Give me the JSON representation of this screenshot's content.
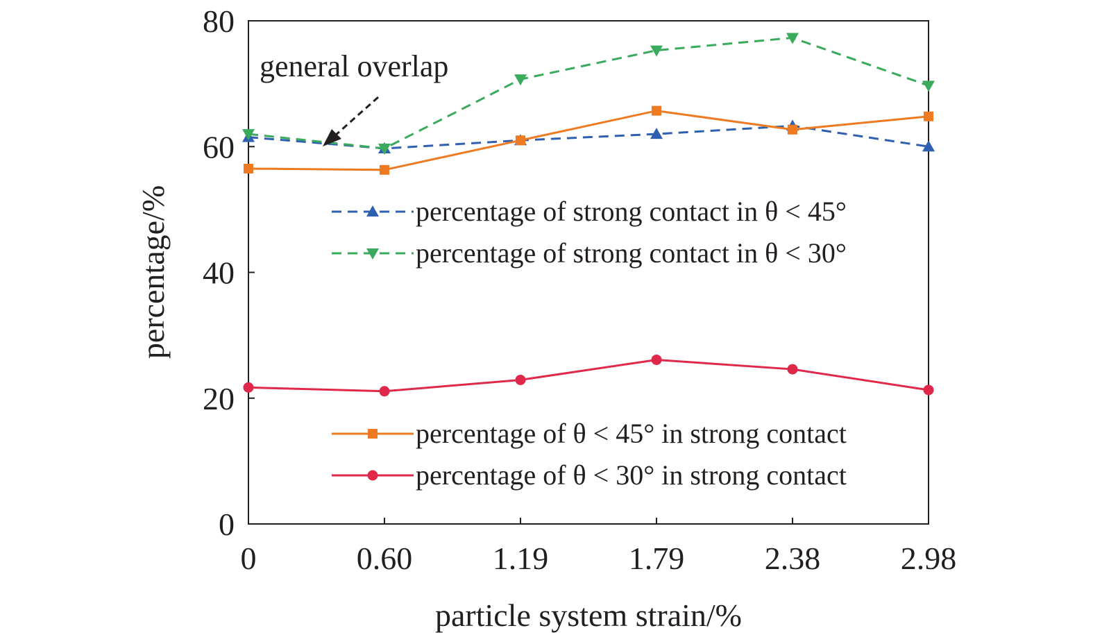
{
  "chart_data": {
    "type": "line",
    "xlabel": "particle system strain/%",
    "ylabel": "percentage/%",
    "categories": [
      "0",
      "0.60",
      "1.19",
      "1.79",
      "2.38",
      "2.98"
    ],
    "ylim": [
      0,
      80
    ],
    "yticks": [
      "0",
      "20",
      "40",
      "60",
      "80"
    ],
    "grid": false,
    "legend_placement": "right",
    "series": [
      {
        "name": "percentage of strong contact in θ < 45°",
        "values": [
          61.5,
          59.7,
          61.0,
          62.0,
          63.3,
          60.0
        ],
        "color": "#2e5fb0",
        "marker": "triangle-up",
        "dash": true
      },
      {
        "name": "percentage of strong contact in θ < 30°",
        "values": [
          62.0,
          59.7,
          70.7,
          75.3,
          77.3,
          69.7
        ],
        "color": "#3aaa5c",
        "marker": "triangle-down",
        "dash": true
      },
      {
        "name": "percentage of θ < 45° in strong contact",
        "values": [
          56.5,
          56.3,
          61.0,
          65.7,
          62.7,
          64.8
        ],
        "color": "#ee7b22",
        "marker": "square",
        "dash": false
      },
      {
        "name": "percentage of θ < 30° in strong contact",
        "values": [
          21.7,
          21.1,
          22.9,
          26.1,
          24.6,
          21.3
        ],
        "color": "#e0294a",
        "marker": "circle",
        "dash": false
      }
    ],
    "annotation": {
      "text": "general overlap"
    }
  }
}
